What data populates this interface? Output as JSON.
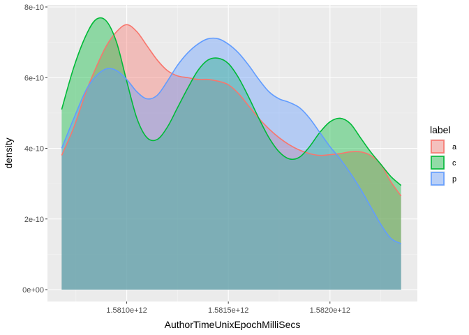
{
  "chart_data": {
    "type": "area",
    "title": "",
    "xlabel": "AuthorTimeUnixEpochMilliSecs",
    "ylabel": "density",
    "xlim": [
      1580610000000,
      1582430000000
    ],
    "ylim": [
      0,
      8e-10
    ],
    "x_ticks": [
      1581000000000,
      1581500000000,
      1582000000000
    ],
    "x_tick_labels": [
      "1.5810e+12",
      "1.5815e+12",
      "1.5820e+12"
    ],
    "y_ticks": [
      0,
      2e-10,
      4e-10,
      6e-10,
      8e-10
    ],
    "y_tick_labels": [
      "0e+00",
      "2e-10",
      "4e-10",
      "6e-10",
      "8e-10"
    ],
    "grid": true,
    "legend": {
      "title": "label",
      "position": "right"
    },
    "series": [
      {
        "name": "a",
        "color": "#F8766D",
        "x": [
          1580680000000,
          1580740000000,
          1580800000000,
          1580850000000,
          1580900000000,
          1580950000000,
          1581000000000,
          1581050000000,
          1581100000000,
          1581150000000,
          1581200000000,
          1581250000000,
          1581300000000,
          1581350000000,
          1581400000000,
          1581450000000,
          1581500000000,
          1581550000000,
          1581600000000,
          1581650000000,
          1581700000000,
          1581750000000,
          1581800000000,
          1581850000000,
          1581900000000,
          1581950000000,
          1582000000000,
          1582050000000,
          1582100000000,
          1582150000000,
          1582200000000,
          1582250000000,
          1582300000000,
          1582350000000
        ],
        "y": [
          3.8e-10,
          4.6e-10,
          5.6e-10,
          6.3e-10,
          6.9e-10,
          7.3e-10,
          7.5e-10,
          7.3e-10,
          6.9e-10,
          6.5e-10,
          6.2e-10,
          6.05e-10,
          6e-10,
          5.95e-10,
          5.95e-10,
          5.9e-10,
          5.8e-10,
          5.55e-10,
          5.2e-10,
          4.85e-10,
          4.55e-10,
          4.3e-10,
          4.1e-10,
          3.95e-10,
          3.85e-10,
          3.8e-10,
          3.82e-10,
          3.85e-10,
          3.9e-10,
          3.9e-10,
          3.8e-10,
          3.55e-10,
          3.05e-10,
          2.65e-10
        ]
      },
      {
        "name": "c",
        "color": "#00BA38",
        "x": [
          1580680000000,
          1580740000000,
          1580800000000,
          1580850000000,
          1580900000000,
          1580950000000,
          1581000000000,
          1581050000000,
          1581100000000,
          1581150000000,
          1581200000000,
          1581250000000,
          1581300000000,
          1581350000000,
          1581400000000,
          1581450000000,
          1581500000000,
          1581550000000,
          1581600000000,
          1581650000000,
          1581700000000,
          1581750000000,
          1581800000000,
          1581850000000,
          1581900000000,
          1581950000000,
          1582000000000,
          1582050000000,
          1582100000000,
          1582150000000,
          1582200000000,
          1582250000000,
          1582300000000,
          1582350000000
        ],
        "y": [
          5.1e-10,
          6.3e-10,
          7.2e-10,
          7.65e-10,
          7.6e-10,
          7e-10,
          5.9e-10,
          4.85e-10,
          4.3e-10,
          4.25e-10,
          4.6e-10,
          5.15e-10,
          5.7e-10,
          6.2e-10,
          6.5e-10,
          6.55e-10,
          6.4e-10,
          6e-10,
          5.45e-10,
          4.85e-10,
          4.3e-10,
          3.9e-10,
          3.7e-10,
          3.75e-10,
          4.05e-10,
          4.45e-10,
          4.75e-10,
          4.85e-10,
          4.7e-10,
          4.3e-10,
          3.9e-10,
          3.55e-10,
          3.2e-10,
          2.95e-10
        ]
      },
      {
        "name": "p",
        "color": "#619CFF",
        "x": [
          1580680000000,
          1580740000000,
          1580800000000,
          1580850000000,
          1580900000000,
          1580950000000,
          1581000000000,
          1581050000000,
          1581100000000,
          1581150000000,
          1581200000000,
          1581250000000,
          1581300000000,
          1581350000000,
          1581400000000,
          1581450000000,
          1581500000000,
          1581550000000,
          1581600000000,
          1581650000000,
          1581700000000,
          1581750000000,
          1581800000000,
          1581850000000,
          1581900000000,
          1581950000000,
          1582000000000,
          1582050000000,
          1582100000000,
          1582150000000,
          1582200000000,
          1582250000000,
          1582300000000,
          1582350000000
        ],
        "y": [
          4e-10,
          4.85e-10,
          5.65e-10,
          6.05e-10,
          6.25e-10,
          6.2e-10,
          5.95e-10,
          5.6e-10,
          5.4e-10,
          5.5e-10,
          5.9e-10,
          6.35e-10,
          6.7e-10,
          6.95e-10,
          7.1e-10,
          7.1e-10,
          6.95e-10,
          6.7e-10,
          6.35e-10,
          5.95e-10,
          5.6e-10,
          5.4e-10,
          5.3e-10,
          5.15e-10,
          4.85e-10,
          4.45e-10,
          4.05e-10,
          3.7e-10,
          3.3e-10,
          2.85e-10,
          2.35e-10,
          1.85e-10,
          1.45e-10,
          1.3e-10
        ]
      }
    ]
  }
}
